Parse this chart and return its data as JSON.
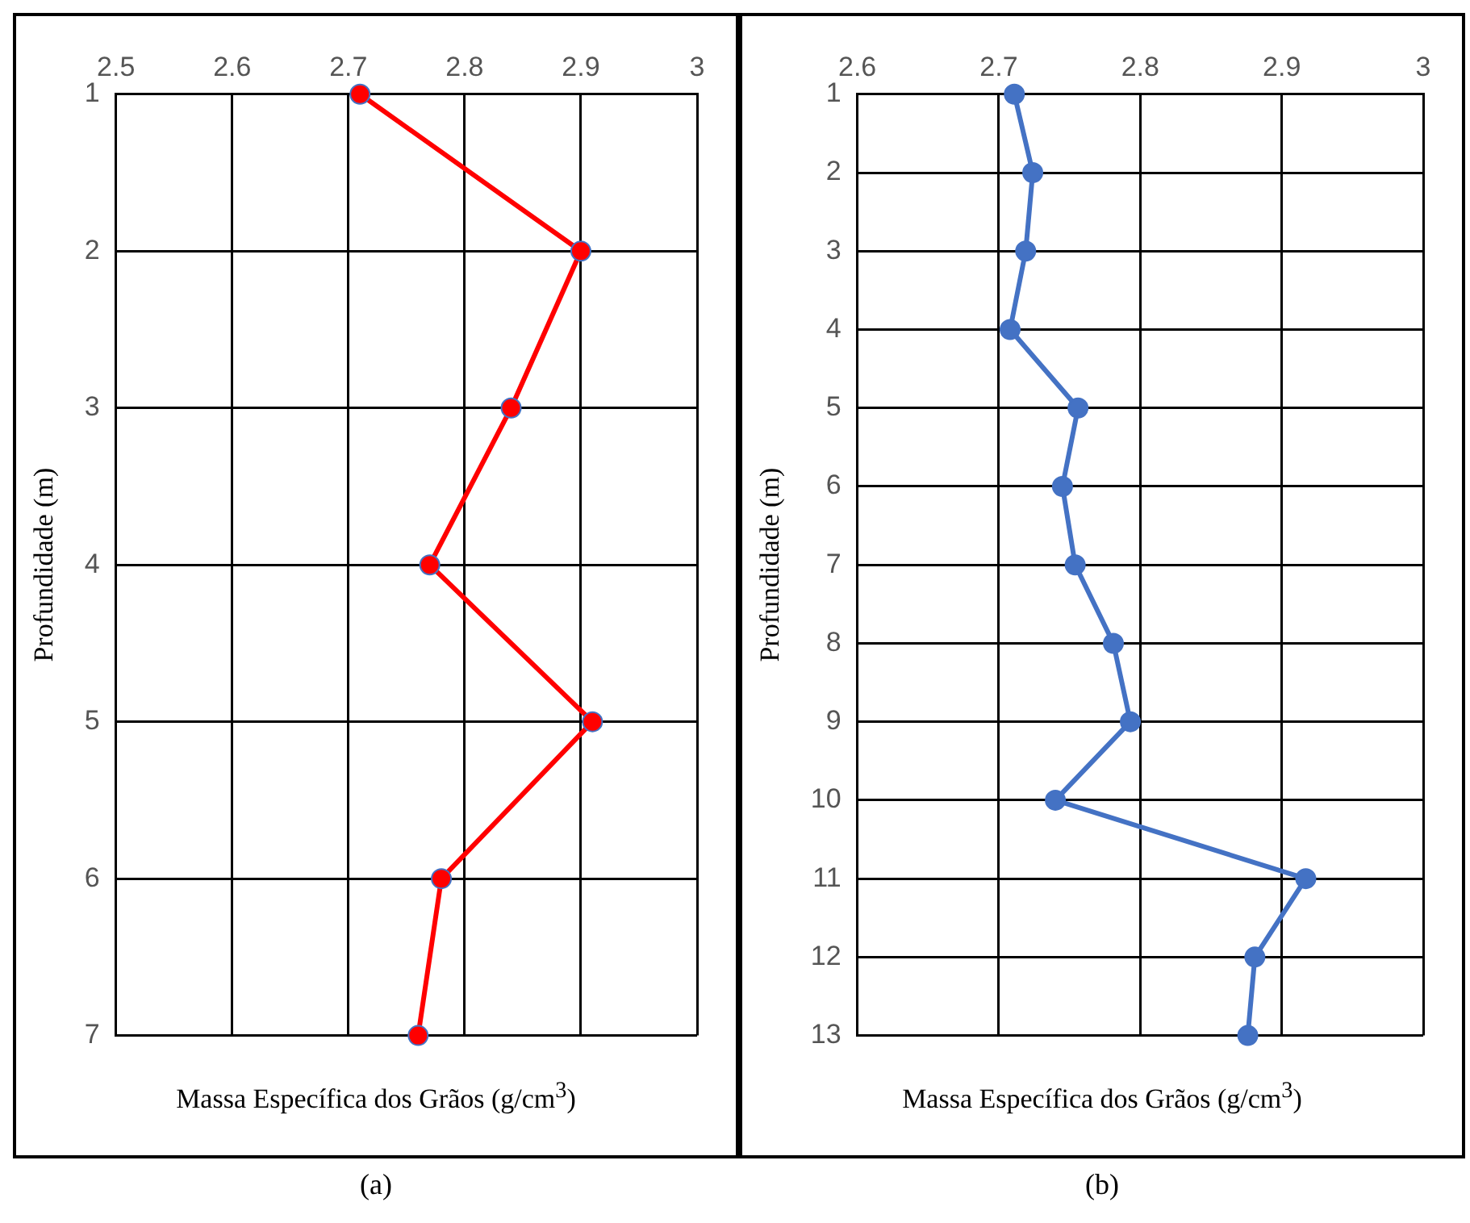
{
  "chart_data": [
    {
      "type": "line",
      "orientation": "horizontal",
      "categories": [
        "1",
        "2",
        "3",
        "4",
        "5",
        "6",
        "7"
      ],
      "series": [
        {
          "color": "#ff0000",
          "values": [
            2.71,
            2.9,
            2.84,
            2.77,
            2.91,
            2.78,
            2.76
          ]
        }
      ],
      "xlim": [
        2.5,
        3
      ],
      "xticks": [
        2.5,
        2.6,
        2.7,
        2.8,
        2.9,
        3
      ],
      "xlabel": "Massa Específica dos Grãos (g/cm$^{3}$)",
      "ylabel": "Profundidade (m)",
      "grid": true,
      "marker": "circle",
      "line_style": "solid",
      "annotations": [
        "(a)"
      ]
    },
    {
      "type": "line",
      "orientation": "horizontal",
      "categories": [
        "1",
        "2",
        "3",
        "4",
        "5",
        "6",
        "7",
        "8",
        "9",
        "10",
        "11",
        "12",
        "13"
      ],
      "series": [
        {
          "color": "#4472c4",
          "values": [
            2.711,
            2.724,
            2.719,
            2.708,
            2.756,
            2.745,
            2.754,
            2.781,
            2.793,
            2.74,
            2.917,
            2.881,
            2.876
          ]
        }
      ],
      "xlim": [
        2.6,
        3
      ],
      "xticks": [
        2.6,
        2.7,
        2.8,
        2.9,
        3
      ],
      "xlabel": "Massa Específica dos Grãos (g/cm$^{3}$)",
      "ylabel": "Profundidade (m)",
      "grid": true,
      "marker": "circle",
      "line_style": "solid",
      "annotations": [
        "(b)"
      ]
    }
  ]
}
